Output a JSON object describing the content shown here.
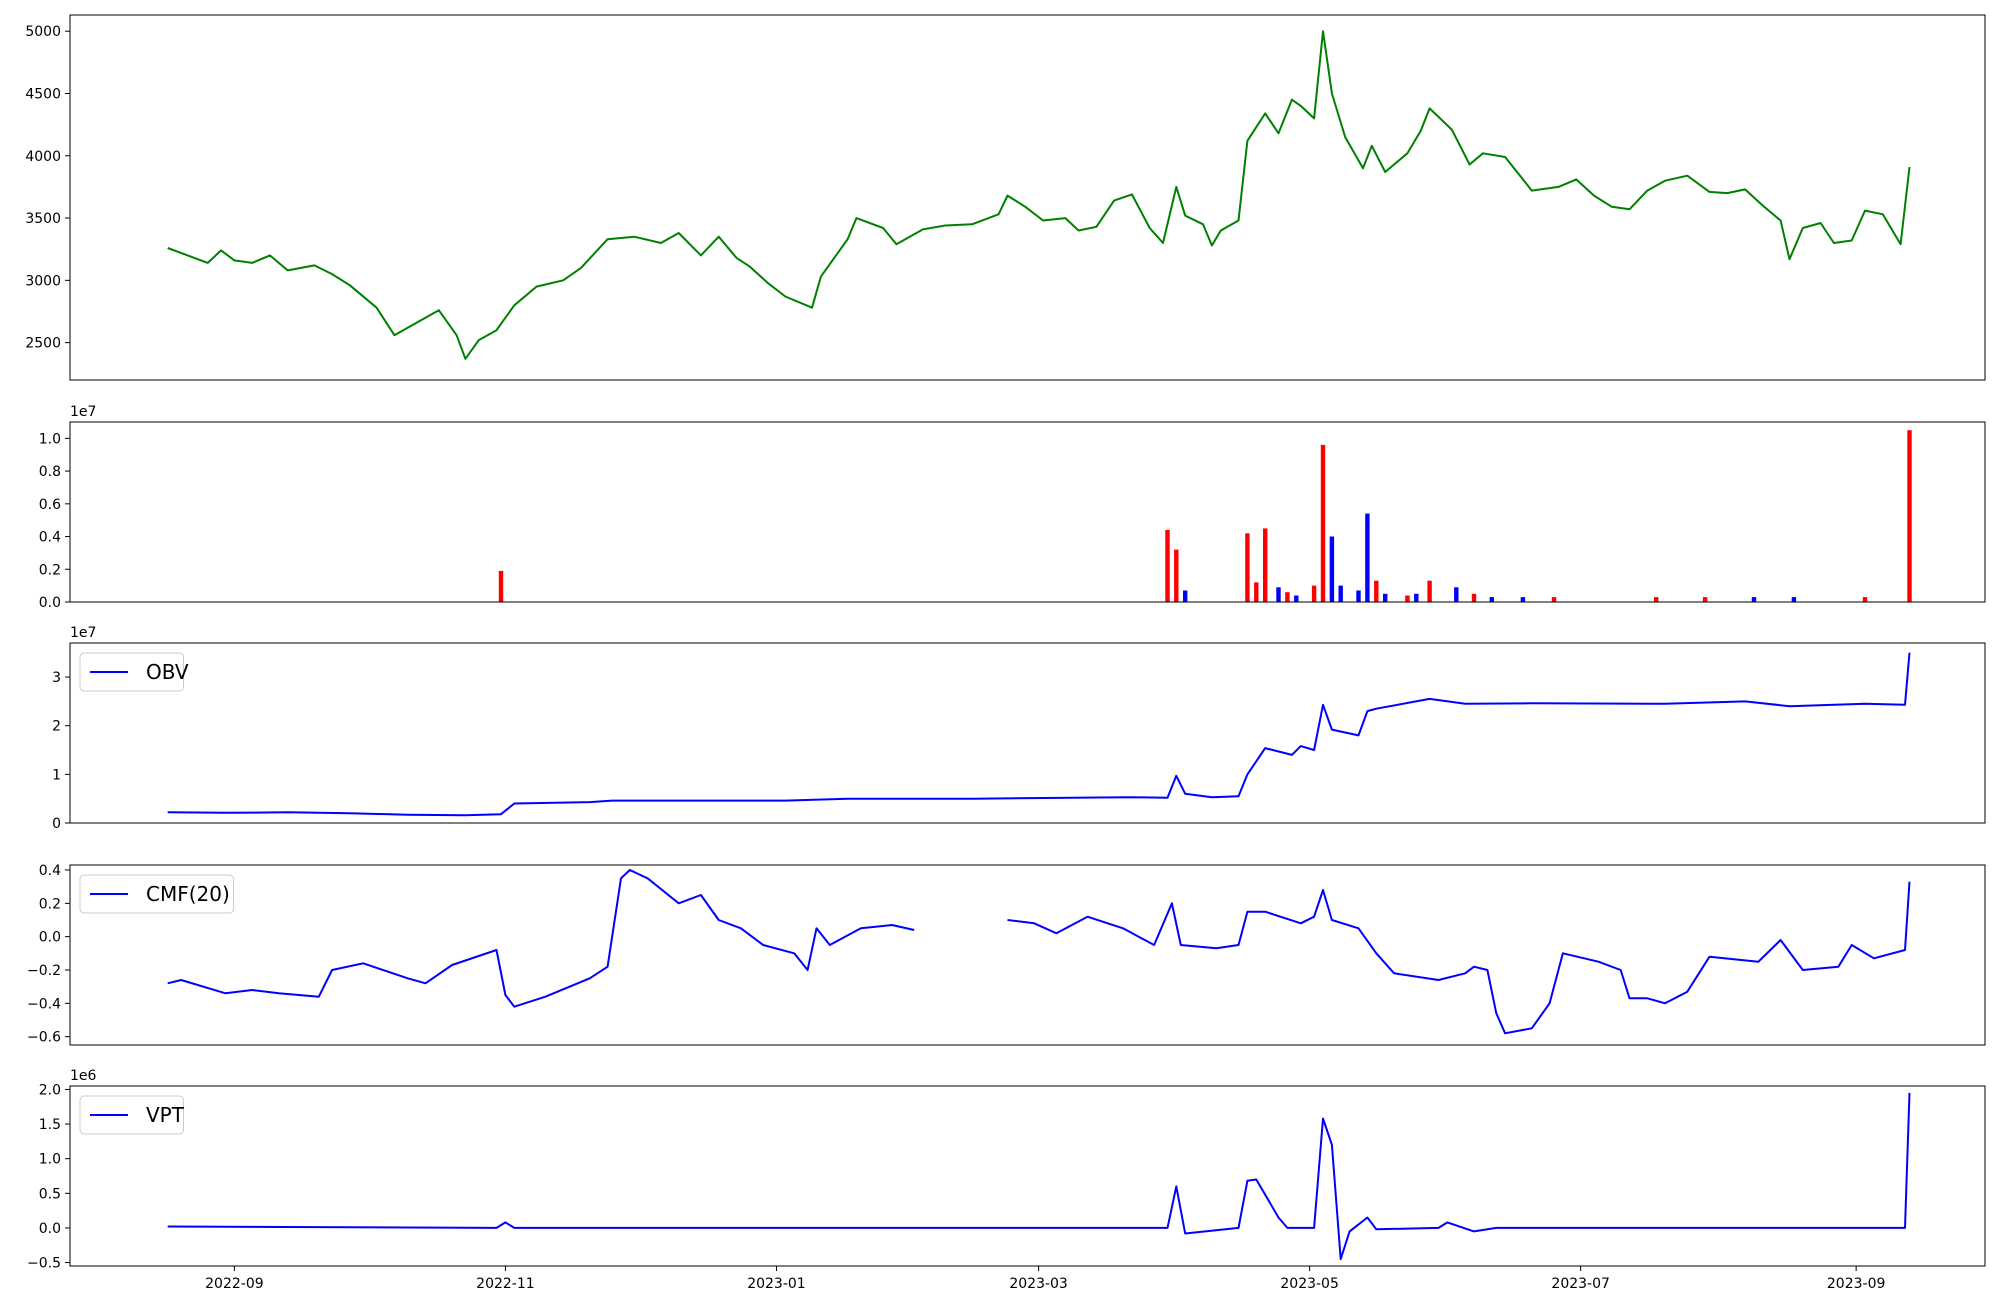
{
  "figure": {
    "background": "#ffffff"
  },
  "x_axis": {
    "ticks": [
      "2022-09",
      "2022-11",
      "2023-01",
      "2023-03",
      "2023-05",
      "2023-07",
      "2023-09"
    ]
  },
  "chart_data": [
    {
      "id": "price",
      "type": "line",
      "color": "#008000",
      "ylim": [
        2200,
        5130
      ],
      "yticks": [
        2500,
        3000,
        3500,
        4000,
        4500,
        5000
      ],
      "ytick_labels": [
        "2500",
        "3000",
        "3500",
        "4000",
        "4500",
        "5000"
      ],
      "grid": false,
      "points": [
        [
          "2022-08-17",
          3260
        ],
        [
          "2022-08-23",
          3180
        ],
        [
          "2022-08-26",
          3140
        ],
        [
          "2022-08-29",
          3240
        ],
        [
          "2022-09-01",
          3160
        ],
        [
          "2022-09-05",
          3140
        ],
        [
          "2022-09-09",
          3200
        ],
        [
          "2022-09-13",
          3080
        ],
        [
          "2022-09-19",
          3120
        ],
        [
          "2022-09-23",
          3050
        ],
        [
          "2022-09-27",
          2960
        ],
        [
          "2022-10-03",
          2780
        ],
        [
          "2022-10-07",
          2560
        ],
        [
          "2022-10-13",
          2680
        ],
        [
          "2022-10-17",
          2760
        ],
        [
          "2022-10-21",
          2560
        ],
        [
          "2022-10-23",
          2370
        ],
        [
          "2022-10-26",
          2520
        ],
        [
          "2022-10-30",
          2600
        ],
        [
          "2022-11-03",
          2800
        ],
        [
          "2022-11-08",
          2950
        ],
        [
          "2022-11-14",
          3000
        ],
        [
          "2022-11-18",
          3100
        ],
        [
          "2022-11-24",
          3330
        ],
        [
          "2022-11-30",
          3350
        ],
        [
          "2022-12-06",
          3300
        ],
        [
          "2022-12-10",
          3380
        ],
        [
          "2022-12-15",
          3200
        ],
        [
          "2022-12-19",
          3350
        ],
        [
          "2022-12-23",
          3180
        ],
        [
          "2022-12-26",
          3110
        ],
        [
          "2022-12-30",
          2980
        ],
        [
          "2023-01-03",
          2870
        ],
        [
          "2023-01-09",
          2780
        ],
        [
          "2023-01-11",
          3030
        ],
        [
          "2023-01-17",
          3330
        ],
        [
          "2023-01-19",
          3500
        ],
        [
          "2023-01-25",
          3420
        ],
        [
          "2023-01-28",
          3290
        ],
        [
          "2023-02-03",
          3410
        ],
        [
          "2023-02-08",
          3440
        ],
        [
          "2023-02-14",
          3450
        ],
        [
          "2023-02-20",
          3530
        ],
        [
          "2023-02-22",
          3680
        ],
        [
          "2023-02-26",
          3590
        ],
        [
          "2023-03-02",
          3480
        ],
        [
          "2023-03-07",
          3500
        ],
        [
          "2023-03-10",
          3400
        ],
        [
          "2023-03-14",
          3430
        ],
        [
          "2023-03-18",
          3640
        ],
        [
          "2023-03-22",
          3690
        ],
        [
          "2023-03-26",
          3420
        ],
        [
          "2023-03-29",
          3300
        ],
        [
          "2023-04-01",
          3750
        ],
        [
          "2023-04-03",
          3520
        ],
        [
          "2023-04-07",
          3450
        ],
        [
          "2023-04-09",
          3280
        ],
        [
          "2023-04-11",
          3400
        ],
        [
          "2023-04-15",
          3480
        ],
        [
          "2023-04-17",
          4120
        ],
        [
          "2023-04-21",
          4340
        ],
        [
          "2023-04-24",
          4180
        ],
        [
          "2023-04-27",
          4450
        ],
        [
          "2023-04-29",
          4400
        ],
        [
          "2023-05-02",
          4300
        ],
        [
          "2023-05-04",
          5000
        ],
        [
          "2023-05-06",
          4500
        ],
        [
          "2023-05-09",
          4150
        ],
        [
          "2023-05-13",
          3900
        ],
        [
          "2023-05-15",
          4080
        ],
        [
          "2023-05-18",
          3870
        ],
        [
          "2023-05-23",
          4020
        ],
        [
          "2023-05-26",
          4200
        ],
        [
          "2023-05-28",
          4380
        ],
        [
          "2023-06-02",
          4210
        ],
        [
          "2023-06-06",
          3930
        ],
        [
          "2023-06-09",
          4020
        ],
        [
          "2023-06-14",
          3990
        ],
        [
          "2023-06-20",
          3720
        ],
        [
          "2023-06-26",
          3750
        ],
        [
          "2023-06-30",
          3810
        ],
        [
          "2023-07-04",
          3680
        ],
        [
          "2023-07-08",
          3590
        ],
        [
          "2023-07-12",
          3570
        ],
        [
          "2023-07-16",
          3720
        ],
        [
          "2023-07-20",
          3800
        ],
        [
          "2023-07-25",
          3840
        ],
        [
          "2023-07-30",
          3710
        ],
        [
          "2023-08-03",
          3700
        ],
        [
          "2023-08-07",
          3730
        ],
        [
          "2023-08-11",
          3600
        ],
        [
          "2023-08-15",
          3480
        ],
        [
          "2023-08-17",
          3170
        ],
        [
          "2023-08-20",
          3420
        ],
        [
          "2023-08-24",
          3460
        ],
        [
          "2023-08-27",
          3300
        ],
        [
          "2023-08-31",
          3320
        ],
        [
          "2023-09-03",
          3560
        ],
        [
          "2023-09-07",
          3530
        ],
        [
          "2023-09-11",
          3290
        ],
        [
          "2023-09-13",
          3910
        ]
      ]
    },
    {
      "id": "volume",
      "type": "bar",
      "offset_text": "1e7",
      "ylim": [
        0,
        1.1
      ],
      "yticks": [
        0,
        0.2,
        0.4,
        0.6,
        0.8,
        1.0
      ],
      "ytick_labels": [
        "0.0",
        "0.2",
        "0.4",
        "0.6",
        "0.8",
        "1.0"
      ],
      "up_color": "#ff0000",
      "down_color": "#0000ff",
      "grid": false,
      "bars": [
        [
          "2022-10-31",
          0.19,
          "up"
        ],
        [
          "2023-03-30",
          0.44,
          "up"
        ],
        [
          "2023-04-01",
          0.32,
          "up"
        ],
        [
          "2023-04-03",
          0.07,
          "down"
        ],
        [
          "2023-04-17",
          0.42,
          "up"
        ],
        [
          "2023-04-19",
          0.12,
          "up"
        ],
        [
          "2023-04-21",
          0.45,
          "up"
        ],
        [
          "2023-04-24",
          0.09,
          "down"
        ],
        [
          "2023-04-26",
          0.06,
          "up"
        ],
        [
          "2023-04-28",
          0.04,
          "down"
        ],
        [
          "2023-05-02",
          0.1,
          "up"
        ],
        [
          "2023-05-04",
          0.96,
          "up"
        ],
        [
          "2023-05-06",
          0.4,
          "down"
        ],
        [
          "2023-05-08",
          0.1,
          "down"
        ],
        [
          "2023-05-12",
          0.07,
          "down"
        ],
        [
          "2023-05-14",
          0.54,
          "down"
        ],
        [
          "2023-05-16",
          0.13,
          "up"
        ],
        [
          "2023-05-18",
          0.05,
          "down"
        ],
        [
          "2023-05-23",
          0.04,
          "up"
        ],
        [
          "2023-05-25",
          0.05,
          "down"
        ],
        [
          "2023-05-28",
          0.13,
          "up"
        ],
        [
          "2023-06-03",
          0.09,
          "down"
        ],
        [
          "2023-06-07",
          0.05,
          "up"
        ],
        [
          "2023-06-11",
          0.03,
          "down"
        ],
        [
          "2023-06-18",
          0.03,
          "down"
        ],
        [
          "2023-06-25",
          0.03,
          "up"
        ],
        [
          "2023-07-18",
          0.03,
          "up"
        ],
        [
          "2023-07-29",
          0.03,
          "up"
        ],
        [
          "2023-08-09",
          0.03,
          "down"
        ],
        [
          "2023-08-18",
          0.03,
          "down"
        ],
        [
          "2023-09-03",
          0.03,
          "up"
        ],
        [
          "2023-09-13",
          1.05,
          "up"
        ]
      ]
    },
    {
      "id": "obv",
      "type": "line",
      "color": "#0000ff",
      "offset_text": "1e7",
      "legend": "OBV",
      "legend_loc": "upper left",
      "ylim": [
        0,
        3.7
      ],
      "yticks": [
        0,
        1,
        2,
        3
      ],
      "ytick_labels": [
        "0",
        "1",
        "2",
        "3"
      ],
      "grid": false,
      "points": [
        [
          "2022-08-17",
          0.22
        ],
        [
          "2022-08-30",
          0.21
        ],
        [
          "2022-09-13",
          0.22
        ],
        [
          "2022-09-27",
          0.2
        ],
        [
          "2022-10-10",
          0.17
        ],
        [
          "2022-10-23",
          0.16
        ],
        [
          "2022-10-31",
          0.18
        ],
        [
          "2022-11-03",
          0.4
        ],
        [
          "2022-11-20",
          0.43
        ],
        [
          "2022-11-25",
          0.46
        ],
        [
          "2023-01-03",
          0.46
        ],
        [
          "2023-01-17",
          0.5
        ],
        [
          "2023-02-14",
          0.5
        ],
        [
          "2023-03-21",
          0.53
        ],
        [
          "2023-03-30",
          0.52
        ],
        [
          "2023-04-01",
          0.97
        ],
        [
          "2023-04-03",
          0.6
        ],
        [
          "2023-04-09",
          0.53
        ],
        [
          "2023-04-15",
          0.55
        ],
        [
          "2023-04-17",
          1.0
        ],
        [
          "2023-04-21",
          1.54
        ],
        [
          "2023-04-27",
          1.4
        ],
        [
          "2023-04-29",
          1.58
        ],
        [
          "2023-05-02",
          1.5
        ],
        [
          "2023-05-04",
          2.43
        ],
        [
          "2023-05-06",
          1.92
        ],
        [
          "2023-05-12",
          1.8
        ],
        [
          "2023-05-14",
          2.3
        ],
        [
          "2023-05-16",
          2.35
        ],
        [
          "2023-05-28",
          2.55
        ],
        [
          "2023-06-05",
          2.45
        ],
        [
          "2023-06-20",
          2.46
        ],
        [
          "2023-07-20",
          2.45
        ],
        [
          "2023-08-07",
          2.5
        ],
        [
          "2023-08-17",
          2.4
        ],
        [
          "2023-09-03",
          2.45
        ],
        [
          "2023-09-12",
          2.43
        ],
        [
          "2023-09-13",
          3.5
        ]
      ]
    },
    {
      "id": "cmf",
      "type": "line",
      "color": "#0000ff",
      "legend": "CMF(20)",
      "legend_loc": "upper left",
      "ylim": [
        -0.65,
        0.43
      ],
      "yticks": [
        -0.6,
        -0.4,
        -0.2,
        0.0,
        0.2,
        0.4
      ],
      "ytick_labels": [
        "−0.6",
        "−0.4",
        "−0.2",
        "0.0",
        "0.2",
        "0.4"
      ],
      "grid": false,
      "segments": [
        [
          [
            "2022-08-17",
            -0.28
          ],
          [
            "2022-08-20",
            -0.26
          ],
          [
            "2022-08-30",
            -0.34
          ],
          [
            "2022-09-05",
            -0.32
          ],
          [
            "2022-09-11",
            -0.34
          ],
          [
            "2022-09-20",
            -0.36
          ],
          [
            "2022-09-23",
            -0.2
          ],
          [
            "2022-09-30",
            -0.16
          ],
          [
            "2022-10-10",
            -0.25
          ],
          [
            "2022-10-14",
            -0.28
          ],
          [
            "2022-10-20",
            -0.17
          ],
          [
            "2022-10-30",
            -0.08
          ],
          [
            "2022-11-01",
            -0.35
          ],
          [
            "2022-11-03",
            -0.42
          ],
          [
            "2022-11-10",
            -0.36
          ],
          [
            "2022-11-20",
            -0.25
          ],
          [
            "2022-11-24",
            -0.18
          ],
          [
            "2022-11-27",
            0.35
          ],
          [
            "2022-11-29",
            0.4
          ],
          [
            "2022-12-03",
            0.35
          ],
          [
            "2022-12-10",
            0.2
          ],
          [
            "2022-12-15",
            0.25
          ],
          [
            "2022-12-19",
            0.1
          ],
          [
            "2022-12-24",
            0.05
          ],
          [
            "2022-12-29",
            -0.05
          ],
          [
            "2023-01-05",
            -0.1
          ],
          [
            "2023-01-08",
            -0.2
          ],
          [
            "2023-01-10",
            0.05
          ],
          [
            "2023-01-13",
            -0.05
          ],
          [
            "2023-01-20",
            0.05
          ],
          [
            "2023-01-27",
            0.07
          ],
          [
            "2023-02-01",
            0.04
          ]
        ],
        [
          [
            "2023-02-22",
            0.1
          ],
          [
            "2023-02-28",
            0.08
          ],
          [
            "2023-03-05",
            0.02
          ],
          [
            "2023-03-12",
            0.12
          ],
          [
            "2023-03-20",
            0.05
          ],
          [
            "2023-03-27",
            -0.05
          ],
          [
            "2023-03-31",
            0.2
          ],
          [
            "2023-04-02",
            -0.05
          ],
          [
            "2023-04-10",
            -0.07
          ],
          [
            "2023-04-15",
            -0.05
          ],
          [
            "2023-04-17",
            0.15
          ],
          [
            "2023-04-21",
            0.15
          ],
          [
            "2023-04-29",
            0.08
          ],
          [
            "2023-05-02",
            0.12
          ],
          [
            "2023-05-04",
            0.28
          ],
          [
            "2023-05-06",
            0.1
          ],
          [
            "2023-05-12",
            0.05
          ],
          [
            "2023-05-16",
            -0.1
          ],
          [
            "2023-05-20",
            -0.22
          ],
          [
            "2023-05-30",
            -0.26
          ],
          [
            "2023-06-05",
            -0.22
          ],
          [
            "2023-06-07",
            -0.18
          ],
          [
            "2023-06-10",
            -0.2
          ],
          [
            "2023-06-12",
            -0.46
          ],
          [
            "2023-06-14",
            -0.58
          ],
          [
            "2023-06-20",
            -0.55
          ],
          [
            "2023-06-24",
            -0.4
          ],
          [
            "2023-06-27",
            -0.1
          ],
          [
            "2023-07-05",
            -0.15
          ],
          [
            "2023-07-10",
            -0.2
          ],
          [
            "2023-07-12",
            -0.37
          ],
          [
            "2023-07-16",
            -0.37
          ],
          [
            "2023-07-20",
            -0.4
          ],
          [
            "2023-07-25",
            -0.33
          ],
          [
            "2023-07-30",
            -0.12
          ],
          [
            "2023-08-10",
            -0.15
          ],
          [
            "2023-08-15",
            -0.02
          ],
          [
            "2023-08-20",
            -0.2
          ],
          [
            "2023-08-28",
            -0.18
          ],
          [
            "2023-08-31",
            -0.05
          ],
          [
            "2023-09-05",
            -0.13
          ],
          [
            "2023-09-12",
            -0.08
          ],
          [
            "2023-09-13",
            0.33
          ]
        ]
      ]
    },
    {
      "id": "vpt",
      "type": "line",
      "color": "#0000ff",
      "offset_text": "1e6",
      "legend": "VPT",
      "legend_loc": "upper left",
      "ylim": [
        -0.55,
        2.05
      ],
      "yticks": [
        -0.5,
        0.0,
        0.5,
        1.0,
        1.5,
        2.0
      ],
      "ytick_labels": [
        "−0.5",
        "0.0",
        "0.5",
        "1.0",
        "1.5",
        "2.0"
      ],
      "grid": false,
      "points": [
        [
          "2022-08-17",
          0.02
        ],
        [
          "2022-10-30",
          0.0
        ],
        [
          "2022-11-01",
          0.08
        ],
        [
          "2022-11-03",
          0.0
        ],
        [
          "2023-03-30",
          0.0
        ],
        [
          "2023-04-01",
          0.6
        ],
        [
          "2023-04-03",
          -0.08
        ],
        [
          "2023-04-15",
          0.0
        ],
        [
          "2023-04-17",
          0.68
        ],
        [
          "2023-04-19",
          0.7
        ],
        [
          "2023-04-24",
          0.15
        ],
        [
          "2023-04-26",
          0.0
        ],
        [
          "2023-05-02",
          0.0
        ],
        [
          "2023-05-04",
          1.58
        ],
        [
          "2023-05-06",
          1.2
        ],
        [
          "2023-05-08",
          -0.45
        ],
        [
          "2023-05-10",
          -0.05
        ],
        [
          "2023-05-14",
          0.15
        ],
        [
          "2023-05-16",
          -0.02
        ],
        [
          "2023-05-30",
          0.0
        ],
        [
          "2023-06-01",
          0.08
        ],
        [
          "2023-06-07",
          -0.05
        ],
        [
          "2023-06-12",
          0.0
        ],
        [
          "2023-09-12",
          0.0
        ],
        [
          "2023-09-13",
          1.95
        ]
      ]
    }
  ]
}
